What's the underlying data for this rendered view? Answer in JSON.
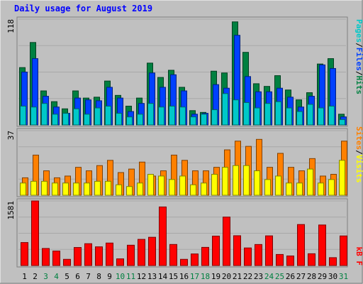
{
  "title": "Daily usage for August 2019",
  "colors": {
    "background": "#c0c0c0",
    "title": "#0000ff",
    "pages": "#00c8c8",
    "files": "#0040ff",
    "hits": "#008040",
    "sites": "#ff8000",
    "visits": "#ffff00",
    "kbytes": "#ff0000",
    "weekend_label": "#008040",
    "weekday_label": "#000000"
  },
  "panels": {
    "top": {
      "max_label": "118",
      "legend": [
        {
          "text": "Pages",
          "color": "#00c8c8"
        },
        {
          "text": "/",
          "color": "#000000"
        },
        {
          "text": "Files",
          "color": "#0040ff"
        },
        {
          "text": "/",
          "color": "#000000"
        },
        {
          "text": "Hits",
          "color": "#008040"
        }
      ]
    },
    "mid": {
      "max_label": "37",
      "legend": [
        {
          "text": "Sites",
          "color": "#ff8000"
        },
        {
          "text": "/",
          "color": "#000000"
        },
        {
          "text": "Visits",
          "color": "#ffff00"
        }
      ]
    },
    "bottom": {
      "max_label": "1581",
      "legend": [
        {
          "text": "kB F",
          "color": "#ff0000"
        }
      ]
    }
  },
  "chart_data": {
    "type": "bar",
    "title": "Daily usage for August 2019",
    "categories": [
      "1",
      "2",
      "3",
      "4",
      "5",
      "6",
      "7",
      "8",
      "9",
      "10",
      "11",
      "12",
      "13",
      "14",
      "15",
      "16",
      "17",
      "18",
      "19",
      "20",
      "21",
      "22",
      "23",
      "24",
      "25",
      "26",
      "27",
      "28",
      "29",
      "30",
      "31"
    ],
    "weekend_days": [
      "3",
      "4",
      "10",
      "11",
      "17",
      "18",
      "24",
      "25",
      "31"
    ],
    "series": [
      {
        "name": "Hits",
        "panel": "top",
        "values": [
          64,
          92,
          38,
          26,
          18,
          38,
          30,
          31,
          49,
          33,
          21,
          30,
          69,
          53,
          61,
          42,
          16,
          14,
          60,
          58,
          115,
          81,
          46,
          43,
          55,
          39,
          28,
          36,
          68,
          74,
          12
        ]
      },
      {
        "name": "Files",
        "panel": "top",
        "values": [
          59,
          74,
          32,
          20,
          13,
          30,
          28,
          27,
          42,
          30,
          15,
          24,
          58,
          42,
          56,
          38,
          12,
          13,
          45,
          41,
          100,
          54,
          37,
          37,
          41,
          31,
          20,
          32,
          67,
          63,
          9
        ]
      },
      {
        "name": "Pages",
        "panel": "top",
        "values": [
          21,
          20,
          24,
          12,
          13,
          18,
          12,
          19,
          21,
          13,
          9,
          12,
          24,
          20,
          21,
          20,
          9,
          12,
          17,
          35,
          28,
          25,
          19,
          24,
          26,
          19,
          15,
          23,
          19,
          21,
          6
        ]
      },
      {
        "name": "Sites",
        "panel": "mid",
        "values": [
          10,
          23,
          14,
          10,
          11,
          16,
          14,
          17,
          20,
          13,
          15,
          19,
          11,
          14,
          23,
          20,
          14,
          14,
          16,
          26,
          31,
          28,
          32,
          16,
          24,
          16,
          14,
          21,
          11,
          12,
          31
        ]
      },
      {
        "name": "Visits",
        "panel": "mid",
        "values": [
          7,
          8,
          8,
          7,
          7,
          7,
          7,
          8,
          8,
          6,
          5,
          7,
          12,
          11,
          9,
          11,
          6,
          7,
          12,
          16,
          17,
          17,
          14,
          9,
          11,
          7,
          7,
          15,
          7,
          9,
          20
        ]
      },
      {
        "name": "kB F",
        "panel": "bottom",
        "values": [
          563,
          1581,
          418,
          355,
          152,
          442,
          535,
          458,
          551,
          164,
          498,
          641,
          692,
          1434,
          516,
          152,
          284,
          445,
          720,
          1186,
          730,
          431,
          515,
          727,
          271,
          235,
          1004,
          289,
          993,
          193,
          725
        ]
      }
    ],
    "ylim_top": [
      0,
      118
    ],
    "ylim_mid": [
      0,
      37
    ],
    "ylim_bottom": [
      0,
      1581
    ]
  }
}
